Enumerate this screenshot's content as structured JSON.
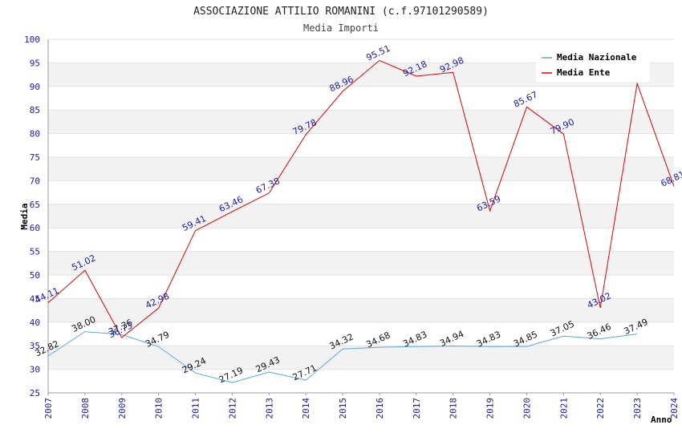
{
  "chart_data": {
    "type": "line",
    "title": "ASSOCIAZIONE ATTILIO ROMANINI (c.f.97101290589)",
    "subtitle": "Media Importi",
    "xlabel": "Anno",
    "ylabel": "Media",
    "ylim": [
      25,
      100
    ],
    "yticks": [
      25,
      30,
      35,
      40,
      45,
      50,
      55,
      60,
      65,
      70,
      75,
      80,
      85,
      90,
      95,
      100
    ],
    "x": [
      "2007",
      "2008",
      "2009",
      "2010",
      "2011",
      "2012",
      "2013",
      "2014",
      "2015",
      "2016",
      "2017",
      "2018",
      "2019",
      "2020",
      "2021",
      "2022",
      "2023",
      "2024"
    ],
    "grid": "horizontal bands",
    "legend_position": "top-right",
    "series": [
      {
        "name": "Media Nazionale",
        "color": "#5aa7e0",
        "values": [
          32.82,
          38.0,
          37.36,
          34.79,
          29.24,
          27.19,
          29.43,
          27.71,
          34.32,
          34.68,
          34.83,
          34.94,
          34.83,
          34.85,
          37.05,
          36.46,
          37.49,
          null
        ],
        "labels": [
          "32.82",
          "38.00",
          "37.36",
          "34.79",
          "29.24",
          "27.19",
          "29.43",
          "27.71",
          "34.32",
          "34.68",
          "34.83",
          "34.94",
          "34.83",
          "34.85",
          "37.05",
          "36.46",
          "37.49",
          null
        ]
      },
      {
        "name": "Media Ente",
        "color": "#dd0000",
        "values": [
          44.11,
          51.02,
          36.73,
          42.98,
          59.41,
          63.46,
          67.38,
          79.78,
          88.96,
          95.51,
          92.18,
          92.98,
          63.59,
          85.67,
          79.9,
          43.02,
          90.62,
          68.81
        ],
        "labels": [
          "44.11",
          "51.02",
          "36.73",
          "42.98",
          "59.41",
          "63.46",
          "67.38",
          "79.78",
          "88.96",
          "95.51",
          "92.18",
          "92.98",
          "63.59",
          "85.67",
          "79.90",
          "43.02",
          null,
          "68.81"
        ]
      }
    ]
  }
}
